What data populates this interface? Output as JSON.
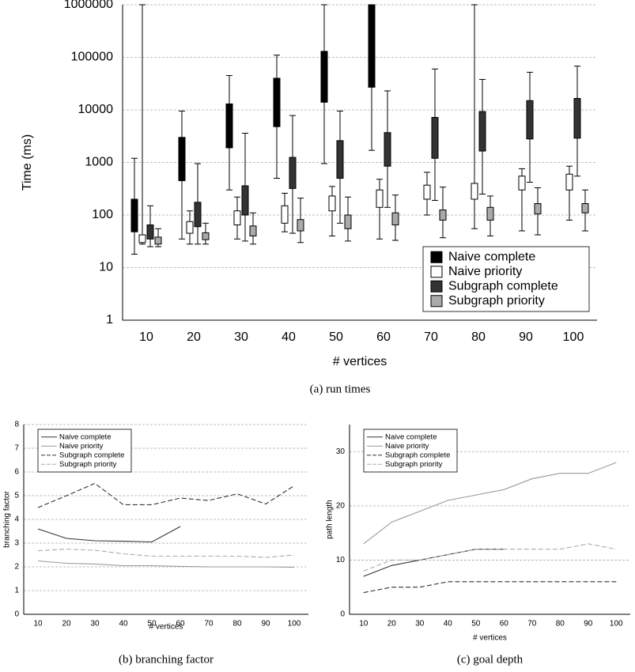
{
  "chart_data": [
    {
      "type": "box",
      "caption": "(a) run times",
      "xlabel": "# vertices",
      "ylabel": "Time (ms)",
      "categories": [
        "10",
        "20",
        "30",
        "40",
        "50",
        "60",
        "70",
        "80",
        "90",
        "100"
      ],
      "log": true,
      "ylim": [
        1,
        1000000
      ],
      "yticks": [
        1,
        10,
        100,
        1000,
        10000,
        100000,
        1000000
      ],
      "grid": true,
      "legend": "lower right",
      "series": [
        {
          "name": "Naive complete",
          "color": "#000000",
          "whisker_low": [
            18,
            35,
            300,
            500,
            950,
            1700,
            null,
            null,
            null,
            null
          ],
          "q1": [
            48,
            450,
            1900,
            4800,
            14000,
            27000,
            null,
            null,
            null,
            null
          ],
          "q3": [
            200,
            3000,
            13000,
            40000,
            130000,
            1000000,
            null,
            null,
            null,
            null
          ],
          "whisker_high": [
            1200,
            9500,
            45000,
            110000,
            1000000,
            1000000,
            null,
            null,
            null,
            null
          ]
        },
        {
          "name": "Naive priority",
          "color": "#ffffff",
          "whisker_low": [
            28,
            28,
            35,
            48,
            40,
            35,
            100,
            55,
            50,
            80
          ],
          "q1": [
            30,
            45,
            65,
            70,
            120,
            140,
            200,
            200,
            300,
            300
          ],
          "q3": [
            42,
            75,
            120,
            150,
            230,
            300,
            370,
            400,
            550,
            600
          ],
          "whisker_high": [
            1000000,
            120,
            220,
            260,
            350,
            480,
            650,
            1000000,
            760,
            850
          ]
        },
        {
          "name": "Subgraph complete",
          "color": "#333333",
          "whisker_low": [
            25,
            28,
            32,
            45,
            70,
            140,
            190,
            250,
            420,
            550
          ],
          "q1": [
            35,
            60,
            100,
            320,
            500,
            850,
            1200,
            1650,
            2800,
            2900
          ],
          "q3": [
            65,
            175,
            360,
            1250,
            2600,
            3700,
            7200,
            9300,
            15000,
            16500
          ],
          "whisker_high": [
            150,
            950,
            3600,
            7800,
            9500,
            23000,
            60000,
            38000,
            52000,
            68000
          ]
        },
        {
          "name": "Subgraph priority",
          "color": "#aaaaaa",
          "whisker_low": [
            25,
            28,
            28,
            30,
            32,
            33,
            37,
            40,
            42,
            50
          ],
          "q1": [
            28,
            34,
            40,
            50,
            55,
            65,
            80,
            80,
            105,
            110
          ],
          "q3": [
            38,
            46,
            62,
            82,
            100,
            110,
            125,
            140,
            165,
            165
          ],
          "whisker_high": [
            55,
            70,
            110,
            210,
            220,
            240,
            340,
            230,
            330,
            300
          ]
        }
      ]
    },
    {
      "type": "line",
      "caption": "(b) branching factor",
      "xlabel": "# vertices",
      "ylabel": "branching factor",
      "x": [
        10,
        20,
        30,
        40,
        50,
        60,
        70,
        80,
        90,
        100
      ],
      "xlim": [
        5,
        105
      ],
      "xticks": [
        10,
        20,
        30,
        40,
        50,
        60,
        70,
        80,
        90,
        100
      ],
      "ylim": [
        0,
        8
      ],
      "yticks": [
        0,
        1,
        2,
        3,
        4,
        5,
        6,
        7,
        8
      ],
      "grid": true,
      "legend": "upper left",
      "series": [
        {
          "name": "Naive complete",
          "color": "#333333",
          "dashed": false,
          "values": [
            3.6,
            3.2,
            3.1,
            3.08,
            3.05,
            3.7,
            null,
            null,
            null,
            null
          ]
        },
        {
          "name": "Naive priority",
          "color": "#999999",
          "dashed": false,
          "values": [
            2.25,
            2.15,
            2.12,
            2.05,
            2.05,
            2.02,
            2.0,
            2.0,
            2.0,
            1.98
          ]
        },
        {
          "name": "Subgraph complete",
          "color": "#333333",
          "dashed": true,
          "values": [
            4.5,
            5.0,
            5.52,
            4.62,
            4.62,
            4.9,
            4.8,
            5.08,
            4.65,
            5.42
          ]
        },
        {
          "name": "Subgraph priority",
          "color": "#aaaaaa",
          "dashed": true,
          "values": [
            2.68,
            2.75,
            2.7,
            2.55,
            2.45,
            2.45,
            2.45,
            2.45,
            2.4,
            2.5
          ]
        }
      ]
    },
    {
      "type": "line",
      "caption": "(c) goal depth",
      "xlabel": "# vertices",
      "ylabel": "path length",
      "x": [
        10,
        20,
        30,
        40,
        50,
        60,
        70,
        80,
        90,
        100
      ],
      "xlim": [
        5,
        105
      ],
      "xticks": [
        10,
        20,
        30,
        40,
        50,
        60,
        70,
        80,
        90,
        100
      ],
      "ylim": [
        0,
        35
      ],
      "yticks": [
        0,
        10,
        20,
        30
      ],
      "grid": true,
      "legend": "upper left",
      "series": [
        {
          "name": "Naive complete",
          "color": "#333333",
          "dashed": false,
          "values": [
            7,
            9,
            10,
            11,
            12,
            12,
            null,
            null,
            null,
            null
          ]
        },
        {
          "name": "Naive priority",
          "color": "#999999",
          "dashed": false,
          "values": [
            13,
            17,
            19,
            21,
            22,
            23,
            25,
            26,
            26,
            28
          ]
        },
        {
          "name": "Subgraph complete",
          "color": "#333333",
          "dashed": true,
          "values": [
            4,
            5,
            5,
            6,
            6,
            6,
            6,
            6,
            6,
            6
          ]
        },
        {
          "name": "Subgraph priority",
          "color": "#aaaaaa",
          "dashed": true,
          "values": [
            8,
            10,
            10,
            11,
            12,
            12,
            12,
            12,
            13,
            12
          ]
        }
      ]
    }
  ]
}
